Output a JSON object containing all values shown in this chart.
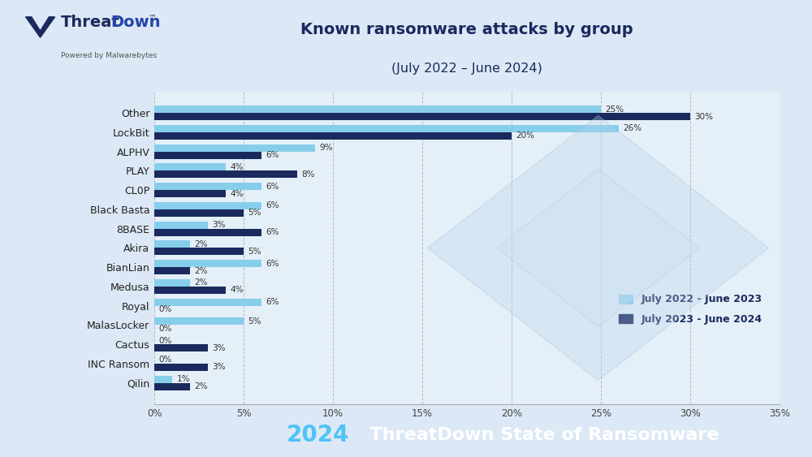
{
  "title_line1": "Known ransomware attacks by group",
  "title_line2": "(July 2022 – June 2024)",
  "categories": [
    "Qilin",
    "INC Ransom",
    "Cactus",
    "MalasLocker",
    "Royal",
    "Medusa",
    "BianLian",
    "Akira",
    "8BASE",
    "Black Basta",
    "CL0P",
    "PLAY",
    "ALPHV",
    "LockBit",
    "Other"
  ],
  "series1_label": "July 2022 - June 2023",
  "series2_label": "July 2023 - June 2024",
  "series1_values": [
    1,
    0,
    0,
    5,
    6,
    2,
    6,
    2,
    3,
    6,
    6,
    4,
    9,
    26,
    25
  ],
  "series2_values": [
    2,
    3,
    3,
    0,
    0,
    4,
    2,
    5,
    6,
    5,
    4,
    8,
    6,
    20,
    30
  ],
  "series1_color": "#87CEEB",
  "series2_color": "#1a2a5e",
  "bg_color": "#dce8f5",
  "chart_bg": "#e4eff8",
  "footer_bg": "#0e1f4d",
  "footer_text_year": "2024",
  "footer_text_main": "  ThreatDown State of Ransomware",
  "footer_text_year_color": "#4fc3f7",
  "footer_text_main_color": "#ffffff",
  "xlim": [
    0,
    35
  ],
  "xticks": [
    0,
    5,
    10,
    15,
    20,
    25,
    30,
    35
  ],
  "xtick_labels": [
    "0%",
    "5%",
    "10%",
    "15%",
    "20%",
    "25%",
    "30%",
    "35%"
  ],
  "bar_height": 0.38,
  "title_color": "#1a2a5e",
  "grid_color": "#999999",
  "label_fontsize": 7.5,
  "ytick_fontsize": 9,
  "xtick_fontsize": 8.5
}
